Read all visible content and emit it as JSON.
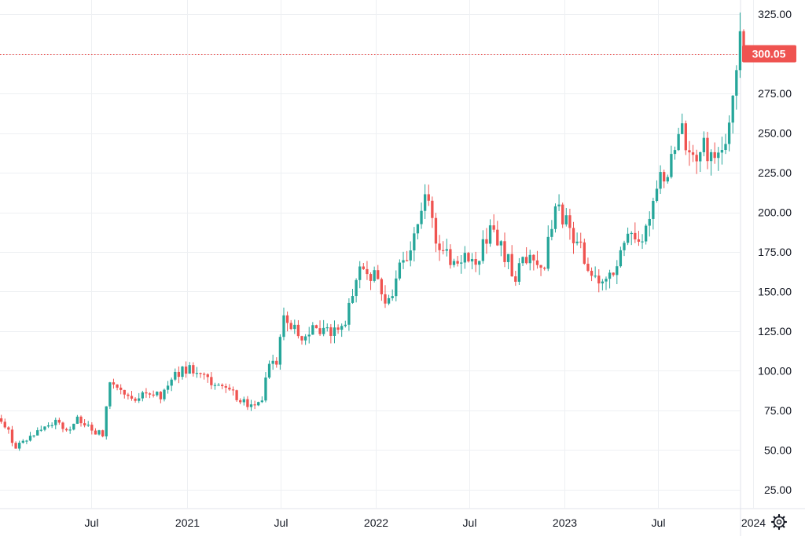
{
  "colors": {
    "up": "#26a69a",
    "down": "#ef5350",
    "grid": "#eef0f3",
    "last_price": "#ef5350",
    "axis_text": "#131722",
    "background": "#ffffff"
  },
  "last_price": {
    "value": 300.05,
    "label": "300.05"
  },
  "settings_icon": "gear-icon",
  "chart_data": {
    "type": "candlestick",
    "title": "",
    "xlabel": "",
    "ylabel": "",
    "ylim": [
      13,
      334
    ],
    "grid": true,
    "y_ticks": [
      "25.00",
      "50.00",
      "75.00",
      "100.00",
      "125.00",
      "150.00",
      "175.00",
      "200.00",
      "225.00",
      "250.00",
      "275.00",
      "300.00",
      "325.00"
    ],
    "x_ticks": [
      {
        "label": "Jul",
        "date": "2020-07-01"
      },
      {
        "label": "2021",
        "date": "2021-01-01"
      },
      {
        "label": "Jul",
        "date": "2021-07-01"
      },
      {
        "label": "2022",
        "date": "2022-01-01"
      },
      {
        "label": "Jul",
        "date": "2022-07-01"
      },
      {
        "label": "2023",
        "date": "2023-01-01"
      },
      {
        "label": "Jul",
        "date": "2023-07-01"
      },
      {
        "label": "2024",
        "date": "2024-01-01"
      }
    ],
    "x_range": [
      "2020-01-06",
      "2024-04-10"
    ],
    "anchors": [
      [
        "2020-01-06",
        70
      ],
      [
        "2020-02-03",
        52
      ],
      [
        "2020-03-16",
        62
      ],
      [
        "2020-04-20",
        68
      ],
      [
        "2020-05-18",
        62
      ],
      [
        "2020-06-01",
        70
      ],
      [
        "2020-07-01",
        62
      ],
      [
        "2020-07-20",
        60
      ],
      [
        "2020-08-03",
        93
      ],
      [
        "2020-09-07",
        82
      ],
      [
        "2020-10-12",
        86
      ],
      [
        "2020-11-09",
        84
      ],
      [
        "2020-12-07",
        98
      ],
      [
        "2021-01-04",
        102
      ],
      [
        "2021-02-01",
        95
      ],
      [
        "2021-03-01",
        90
      ],
      [
        "2021-04-05",
        84
      ],
      [
        "2021-05-03",
        78
      ],
      [
        "2021-05-24",
        83
      ],
      [
        "2021-06-07",
        103
      ],
      [
        "2021-06-21",
        105
      ],
      [
        "2021-07-05",
        135
      ],
      [
        "2021-08-02",
        122
      ],
      [
        "2021-08-30",
        125
      ],
      [
        "2021-10-04",
        124
      ],
      [
        "2021-11-01",
        130
      ],
      [
        "2021-11-29",
        164
      ],
      [
        "2021-12-27",
        160
      ],
      [
        "2022-01-24",
        142
      ],
      [
        "2022-02-14",
        168
      ],
      [
        "2022-03-14",
        182
      ],
      [
        "2022-04-04",
        212
      ],
      [
        "2022-04-25",
        180
      ],
      [
        "2022-05-23",
        172
      ],
      [
        "2022-06-20",
        170
      ],
      [
        "2022-07-11",
        168
      ],
      [
        "2022-08-08",
        190
      ],
      [
        "2022-08-29",
        178
      ],
      [
        "2022-09-26",
        160
      ],
      [
        "2022-10-24",
        175
      ],
      [
        "2022-11-21",
        168
      ],
      [
        "2022-12-12",
        205
      ],
      [
        "2023-01-09",
        188
      ],
      [
        "2023-02-06",
        172
      ],
      [
        "2023-03-06",
        152
      ],
      [
        "2023-04-03",
        160
      ],
      [
        "2023-05-01",
        182
      ],
      [
        "2023-06-05",
        188
      ],
      [
        "2023-06-26",
        220
      ],
      [
        "2023-07-17",
        218
      ],
      [
        "2023-08-07",
        255
      ],
      [
        "2023-08-28",
        238
      ],
      [
        "2023-09-25",
        240
      ],
      [
        "2023-10-16",
        232
      ],
      [
        "2023-11-06",
        238
      ],
      [
        "2023-11-20",
        278
      ],
      [
        "2023-12-04",
        308
      ],
      [
        "2023-12-11",
        300
      ]
    ]
  }
}
